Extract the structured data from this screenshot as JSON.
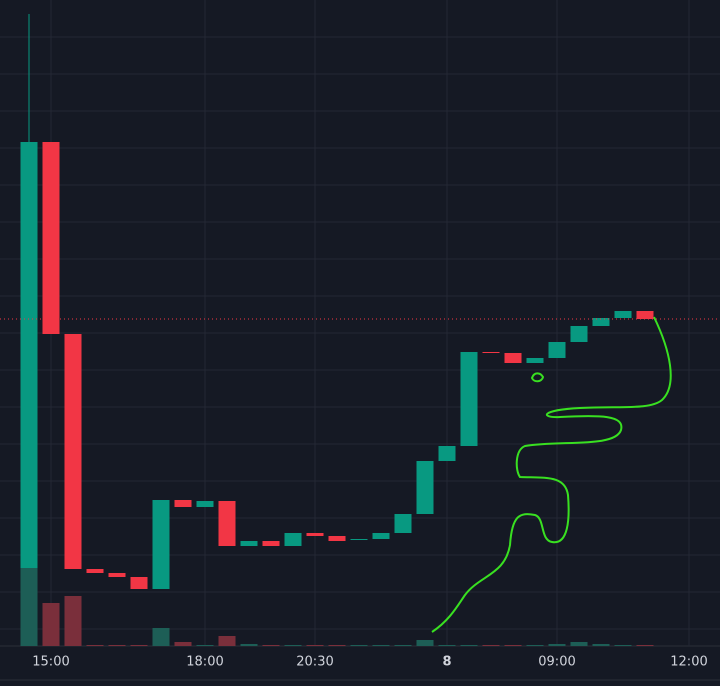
{
  "chart_data": {
    "type": "candlestick",
    "up_color": "#089981",
    "down_color": "#f23645",
    "up_volume_color": "#1d5e56",
    "down_volume_color": "#7a2f3b",
    "open": [
      78,
      504,
      312,
      77,
      73,
      69,
      57,
      146,
      139,
      145,
      100,
      105,
      100,
      113,
      110,
      106,
      107,
      113,
      132,
      185,
      200,
      294,
      293,
      283,
      288,
      304,
      320,
      328,
      335
    ],
    "high": [
      632,
      504,
      312,
      77,
      73,
      69,
      146,
      146,
      145,
      145,
      105,
      105,
      113,
      113,
      110,
      107,
      113,
      132,
      185,
      200,
      294,
      294,
      293,
      288,
      304,
      320,
      328,
      335,
      335
    ],
    "low": [
      78,
      312,
      77,
      73,
      69,
      57,
      57,
      139,
      139,
      100,
      100,
      100,
      100,
      110,
      105,
      106,
      107,
      113,
      132,
      185,
      200,
      293,
      283,
      283,
      288,
      304,
      320,
      328,
      327
    ],
    "close": [
      504,
      312,
      77,
      73,
      69,
      57,
      146,
      139,
      145,
      100,
      105,
      100,
      113,
      110,
      105,
      107,
      113,
      132,
      185,
      200,
      294,
      293,
      283,
      288,
      304,
      320,
      328,
      335,
      327
    ],
    "volume": [
      176,
      43,
      50,
      1,
      1,
      1,
      18,
      4,
      1,
      10,
      2,
      1,
      1,
      1,
      1,
      1,
      1,
      1,
      6,
      1,
      1,
      1,
      1,
      1,
      2,
      4,
      2,
      1,
      1
    ],
    "ylim": [
      0,
      646
    ],
    "xticks": [
      {
        "value": 1,
        "label": "15:00"
      },
      {
        "value": 8,
        "label": "18:00"
      },
      {
        "value": 13,
        "label": "20:30"
      },
      {
        "value": 19,
        "label": "8"
      },
      {
        "value": 24,
        "label": "09:00"
      },
      {
        "value": 30,
        "label": "12:00"
      }
    ],
    "grid": true
  }
}
